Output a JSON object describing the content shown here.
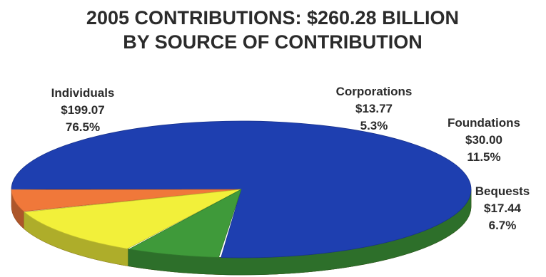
{
  "chart_data": {
    "type": "pie",
    "title": "2005 CONTRIBUTIONS: $260.28 BILLION",
    "subtitle": "BY SOURCE OF CONTRIBUTION",
    "total": 260.28,
    "slices": [
      {
        "name": "Individuals",
        "value_label": "$199.07",
        "value": 199.07,
        "percent_label": "76.5%",
        "percent": 76.5,
        "color": "#1e3fb0"
      },
      {
        "name": "Corporations",
        "value_label": "$13.77",
        "value": 13.77,
        "percent_label": "5.3%",
        "percent": 5.3,
        "color": "#f0783a"
      },
      {
        "name": "Foundations",
        "value_label": "$30.00",
        "value": 30.0,
        "percent_label": "11.5%",
        "percent": 11.5,
        "color": "#f2f03a"
      },
      {
        "name": "Bequests",
        "value_label": "$17.44",
        "value": 17.44,
        "percent_label": "6.7%",
        "percent": 6.7,
        "color": "#3f9a3a"
      }
    ]
  }
}
